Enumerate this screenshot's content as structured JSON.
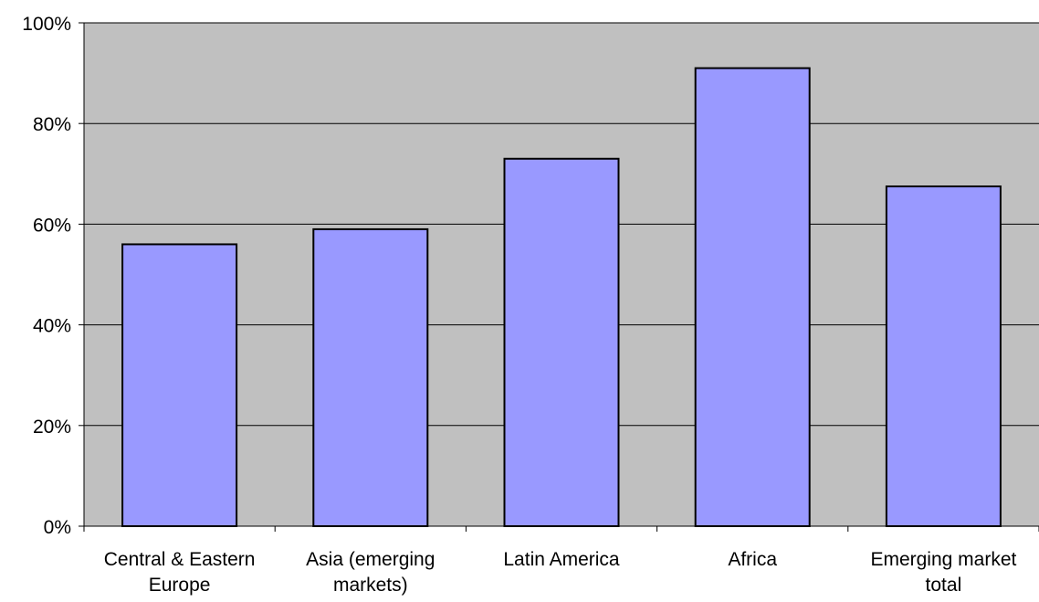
{
  "chart_data": {
    "type": "bar",
    "categories": [
      [
        "Central & Eastern",
        "Europe"
      ],
      [
        "Asia (emerging",
        "markets)"
      ],
      [
        "Latin America"
      ],
      [
        "Africa"
      ],
      [
        "Emerging market",
        "total"
      ]
    ],
    "values": [
      56,
      59,
      73,
      91,
      67.5
    ],
    "yticks": [
      "0%",
      "20%",
      "40%",
      "60%",
      "80%",
      "100%"
    ],
    "ylim": [
      0,
      100
    ],
    "grid": true,
    "colors": {
      "plot_background": "#c0c0c0",
      "bar_fill": "#9999ff",
      "bar_stroke": "#000000",
      "gridline": "#000000"
    }
  }
}
